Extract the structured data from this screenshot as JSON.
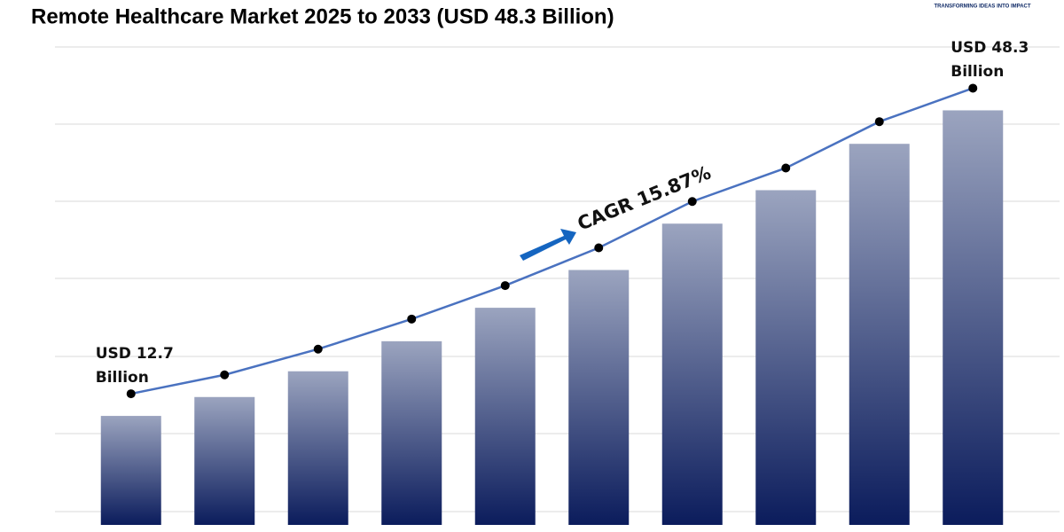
{
  "chart_data": {
    "type": "bar",
    "title": "Remote Healthcare Market 2025 to 2033 (USD 48.3 Billion)",
    "logo_tagline": "TRANSFORMING IDEAS INTO IMPACT",
    "annotation": "CAGR 15.87%",
    "categories": [
      null,
      null,
      null,
      null,
      null,
      null,
      null,
      null,
      null,
      null
    ],
    "values": [
      12.7,
      14.9,
      17.9,
      21.4,
      25.3,
      29.7,
      35.1,
      39.0,
      44.4,
      48.3
    ],
    "value_labels": [
      "USD 12.7 Billion",
      null,
      null,
      null,
      null,
      null,
      null,
      null,
      null,
      "USD 48.3 Billion"
    ],
    "color": [
      "#9ba4bf",
      "#0b1c5c"
    ],
    "trend_line_color": "#4a72c0",
    "ylim": [
      0,
      50
    ]
  }
}
